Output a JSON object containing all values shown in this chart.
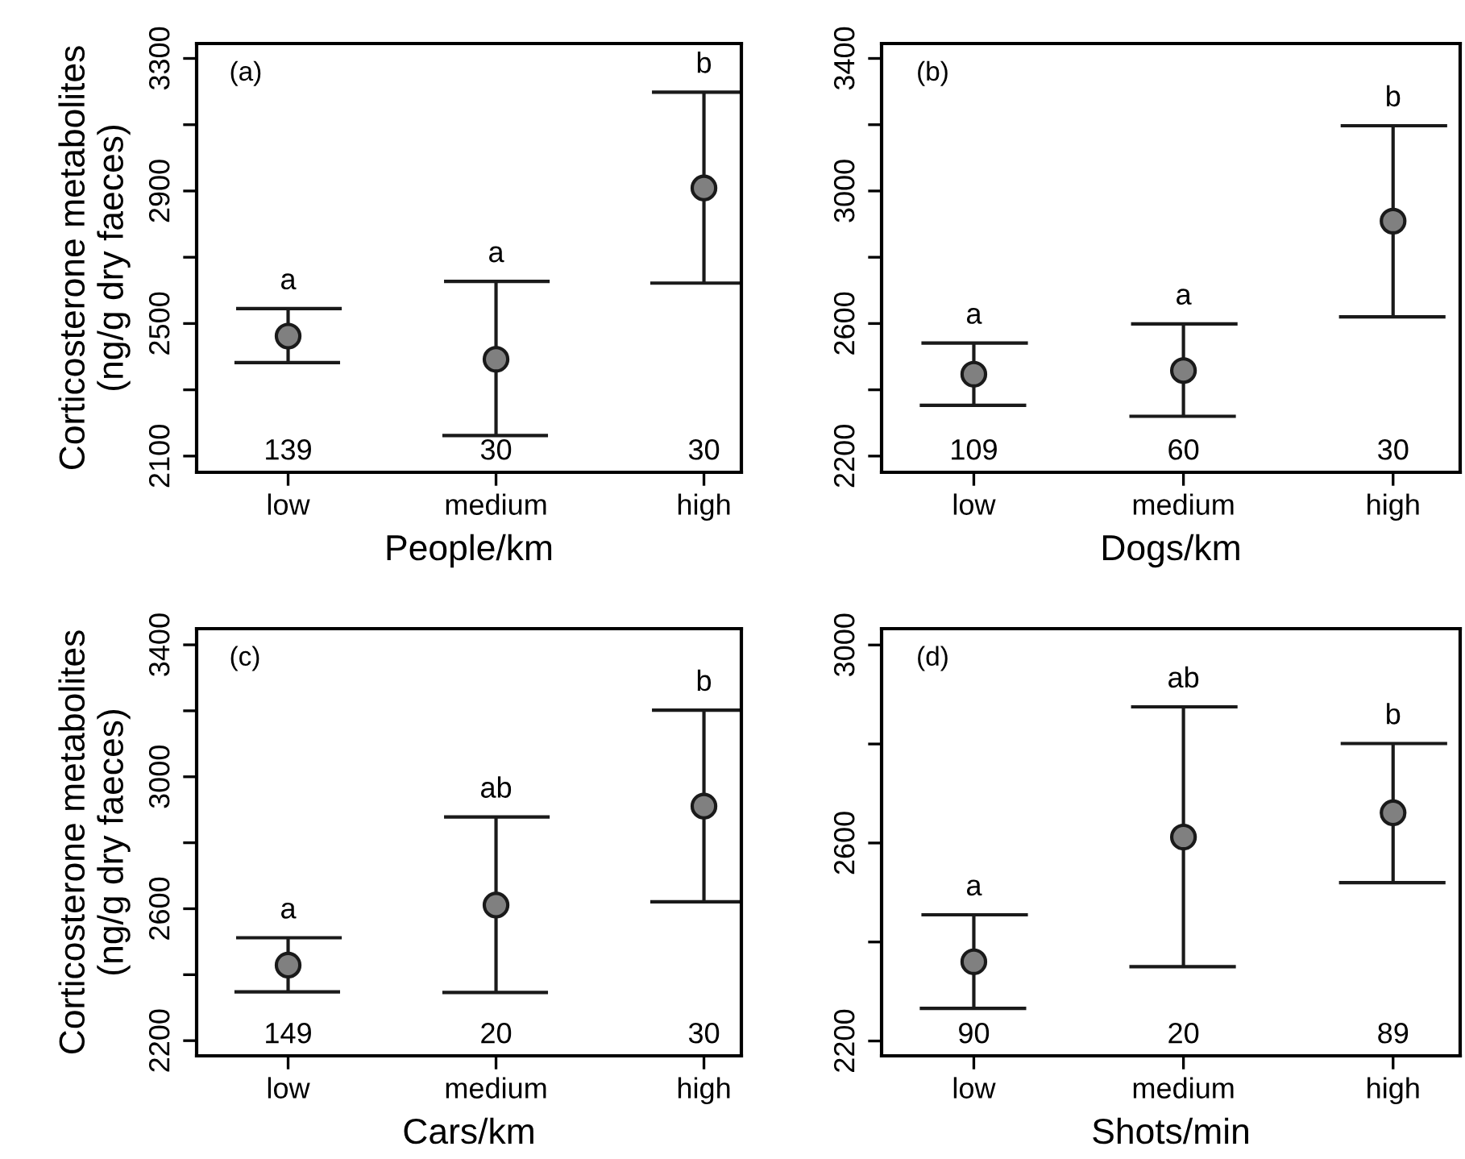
{
  "chart_data": [
    {
      "type": "scatter",
      "categories": [
        "low",
        "medium",
        "high"
      ],
      "xlabel": "People/km",
      "ylabel": "Corticosterone metabolites\n(ng/g dry faeces)",
      "marker": "circle",
      "grid": false,
      "legend": false,
      "color": "#808080",
      "values": [
        2462,
        2392,
        2909
      ],
      "errors": [
        [
          2382,
          2545
        ],
        [
          2162,
          2627
        ],
        [
          2622,
          3198
        ]
      ],
      "ylim": [
        2051,
        3345
      ],
      "yticks": [
        2100,
        {
          "value": 2300,
          "label": null
        },
        2500,
        {
          "value": 2700,
          "label": null
        },
        2900,
        {
          "value": 3100,
          "label": null
        },
        3300
      ],
      "annotations": [
        "(a)",
        "a",
        "a",
        "b",
        "139",
        "30",
        "30"
      ]
    },
    {
      "type": "scatter",
      "categories": [
        "low",
        "medium",
        "high"
      ],
      "xlabel": "Dogs/km",
      "marker": "circle",
      "grid": false,
      "legend": false,
      "color": "#808080",
      "values": [
        2447,
        2458,
        2909
      ],
      "errors": [
        [
          2353,
          2541
        ],
        [
          2320,
          2599
        ],
        [
          2620,
          3197
        ]
      ],
      "ylim": [
        2151,
        3445
      ],
      "yticks": [
        2200,
        {
          "value": 2400,
          "label": null
        },
        2600,
        {
          "value": 2800,
          "label": null
        },
        3000,
        {
          "value": 3200,
          "label": null
        },
        3400
      ],
      "annotations": [
        "(b)",
        "a",
        "a",
        "b",
        "109",
        "60",
        "30"
      ]
    },
    {
      "type": "scatter",
      "categories": [
        "low",
        "medium",
        "high"
      ],
      "xlabel": "Cars/km",
      "ylabel": "Corticosterone metabolites\n(ng/g dry faeces)",
      "marker": "circle",
      "grid": false,
      "legend": false,
      "color": "#808080",
      "values": [
        2429,
        2611,
        2911
      ],
      "errors": [
        [
          2348,
          2512
        ],
        [
          2346,
          2878
        ],
        [
          2621,
          3202
        ]
      ],
      "ylim": [
        2154,
        3449
      ],
      "yticks": [
        2200,
        {
          "value": 2400,
          "label": null
        },
        2600,
        {
          "value": 2800,
          "label": null
        },
        3000,
        {
          "value": 3200,
          "label": null
        },
        3400
      ],
      "annotations": [
        "(c)",
        "a",
        "ab",
        "b",
        "149",
        "20",
        "30"
      ]
    },
    {
      "type": "scatter",
      "categories": [
        "low",
        "medium",
        "high"
      ],
      "xlabel": "Shots/min",
      "marker": "circle",
      "grid": false,
      "legend": false,
      "color": "#808080",
      "values": [
        2360,
        2612,
        2661
      ],
      "errors": [
        [
          2266,
          2455
        ],
        [
          2350,
          2875
        ],
        [
          2520,
          2801
        ]
      ],
      "ylim": [
        2170,
        3033
      ],
      "yticks": [
        2200,
        {
          "value": 2400,
          "label": null
        },
        2600,
        {
          "value": 2800,
          "label": null
        },
        3000
      ],
      "annotations": [
        "(d)",
        "a",
        "ab",
        "b",
        "90",
        "20",
        "89"
      ]
    }
  ]
}
